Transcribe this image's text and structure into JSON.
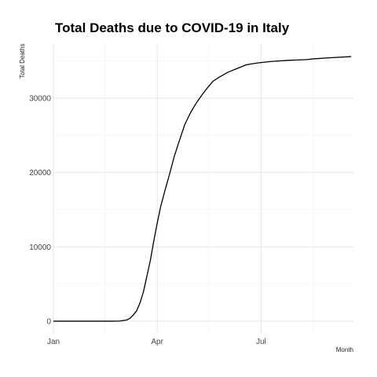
{
  "chart_data": {
    "type": "line",
    "title": "Total Deaths due to COVID-19 in Italy",
    "xlabel": "Month",
    "ylabel": "Total Deaths",
    "x_axis": {
      "type": "date",
      "range": [
        "2020-01-01",
        "2020-09-20"
      ],
      "ticks": [
        {
          "date": "2020-01-01",
          "label": "Jan"
        },
        {
          "date": "2020-04-01",
          "label": "Apr"
        },
        {
          "date": "2020-07-01",
          "label": "Jul"
        }
      ],
      "minor_ticks": [
        "2020-02-15",
        "2020-05-16",
        "2020-08-16"
      ]
    },
    "y_axis": {
      "range": [
        -1700,
        37300
      ],
      "ticks": [
        0,
        10000,
        20000,
        30000
      ],
      "tick_labels": [
        "0",
        "10000",
        "20000",
        "30000"
      ],
      "minor_ticks": [
        5000,
        15000,
        25000,
        35000
      ]
    },
    "grid": true,
    "series": [
      {
        "color": "#000000",
        "points": [
          [
            "2020-01-01",
            0
          ],
          [
            "2020-02-21",
            0
          ],
          [
            "2020-02-28",
            20
          ],
          [
            "2020-03-05",
            150
          ],
          [
            "2020-03-08",
            370
          ],
          [
            "2020-03-11",
            830
          ],
          [
            "2020-03-14",
            1400
          ],
          [
            "2020-03-17",
            2500
          ],
          [
            "2020-03-20",
            4000
          ],
          [
            "2020-03-23",
            6100
          ],
          [
            "2020-03-26",
            8200
          ],
          [
            "2020-03-29",
            10800
          ],
          [
            "2020-04-01",
            13200
          ],
          [
            "2020-04-04",
            15400
          ],
          [
            "2020-04-08",
            17700
          ],
          [
            "2020-04-12",
            19900
          ],
          [
            "2020-04-16",
            22200
          ],
          [
            "2020-04-20",
            24100
          ],
          [
            "2020-04-25",
            26400
          ],
          [
            "2020-04-30",
            28000
          ],
          [
            "2020-05-05",
            29300
          ],
          [
            "2020-05-10",
            30400
          ],
          [
            "2020-05-15",
            31400
          ],
          [
            "2020-05-20",
            32300
          ],
          [
            "2020-05-26",
            32900
          ],
          [
            "2020-06-02",
            33500
          ],
          [
            "2020-06-10",
            34000
          ],
          [
            "2020-06-18",
            34500
          ],
          [
            "2020-06-28",
            34750
          ],
          [
            "2020-07-10",
            34950
          ],
          [
            "2020-07-25",
            35100
          ],
          [
            "2020-08-10",
            35200
          ],
          [
            "2020-08-16",
            35300
          ],
          [
            "2020-08-31",
            35450
          ],
          [
            "2020-09-18",
            35600
          ]
        ]
      }
    ]
  }
}
